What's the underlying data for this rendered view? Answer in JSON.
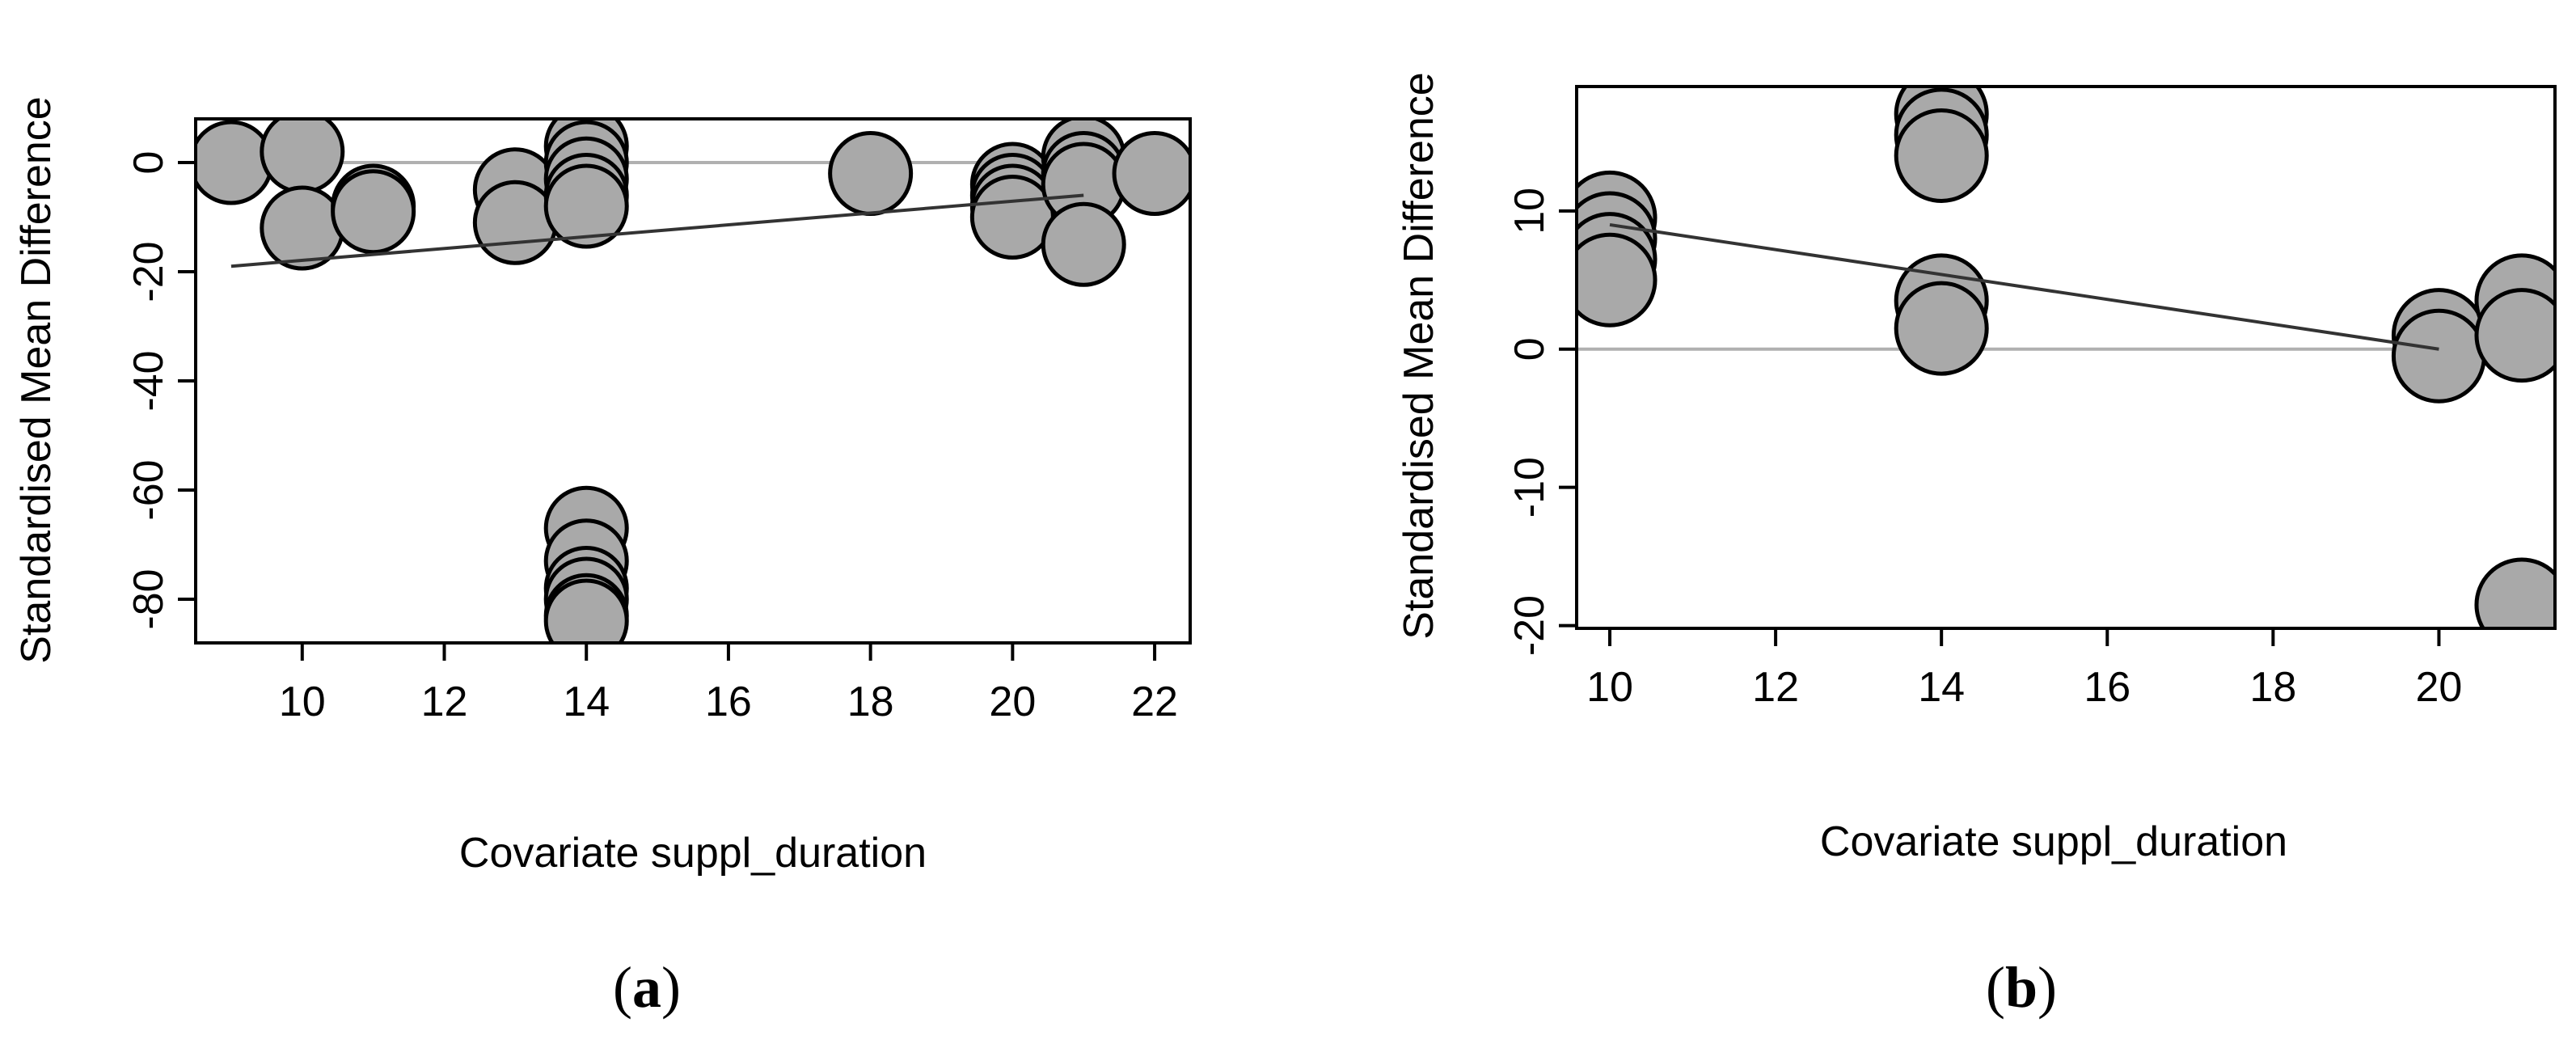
{
  "chart_data": [
    {
      "type": "scatter",
      "panel_label": "a",
      "xlabel": "Covariate suppl_duration",
      "ylabel": "Standardised Mean Difference",
      "xlim": [
        8.5,
        22.5
      ],
      "ylim": [
        -88,
        8
      ],
      "xticks": [
        10,
        12,
        14,
        16,
        18,
        20,
        22
      ],
      "yticks": [
        0,
        -20,
        -40,
        -60,
        -80
      ],
      "reference_line_y": 0,
      "regression_line": {
        "x": [
          9,
          21
        ],
        "y": [
          -19,
          -6
        ]
      },
      "points": [
        {
          "x": 9,
          "y": 0
        },
        {
          "x": 10,
          "y": 2
        },
        {
          "x": 10,
          "y": -12
        },
        {
          "x": 11,
          "y": -8
        },
        {
          "x": 11,
          "y": -9
        },
        {
          "x": 13,
          "y": -5
        },
        {
          "x": 13,
          "y": -11
        },
        {
          "x": 14,
          "y": 3
        },
        {
          "x": 14,
          "y": 0
        },
        {
          "x": 14,
          "y": -3
        },
        {
          "x": 14,
          "y": -6
        },
        {
          "x": 14,
          "y": -8
        },
        {
          "x": 14,
          "y": -67
        },
        {
          "x": 14,
          "y": -73
        },
        {
          "x": 14,
          "y": -78
        },
        {
          "x": 14,
          "y": -80
        },
        {
          "x": 14,
          "y": -83
        },
        {
          "x": 14,
          "y": -84
        },
        {
          "x": 18,
          "y": -2
        },
        {
          "x": 20,
          "y": -4
        },
        {
          "x": 20,
          "y": -6
        },
        {
          "x": 20,
          "y": -8
        },
        {
          "x": 20,
          "y": -10
        },
        {
          "x": 21,
          "y": 1
        },
        {
          "x": 21,
          "y": -2
        },
        {
          "x": 21,
          "y": -4
        },
        {
          "x": 21,
          "y": -15
        },
        {
          "x": 22,
          "y": -2
        }
      ]
    },
    {
      "type": "scatter",
      "panel_label": "b",
      "xlabel": "Covariate suppl_duration",
      "ylabel": "Standardised Mean Difference",
      "xlim": [
        9.6,
        21.4
      ],
      "ylim": [
        -20.2,
        19
      ],
      "xticks": [
        10,
        12,
        14,
        16,
        18,
        20
      ],
      "yticks": [
        10,
        0,
        -10,
        -20
      ],
      "reference_line_y": 0,
      "regression_line": {
        "x": [
          10,
          20
        ],
        "y": [
          9,
          0
        ]
      },
      "points": [
        {
          "x": 10,
          "y": 9.5
        },
        {
          "x": 10,
          "y": 8
        },
        {
          "x": 10,
          "y": 6.5
        },
        {
          "x": 10,
          "y": 5
        },
        {
          "x": 14,
          "y": 17
        },
        {
          "x": 14,
          "y": 15.5
        },
        {
          "x": 14,
          "y": 14
        },
        {
          "x": 14,
          "y": 3.5
        },
        {
          "x": 14,
          "y": 1.5
        },
        {
          "x": 20,
          "y": 1
        },
        {
          "x": 20,
          "y": -0.5
        },
        {
          "x": 21,
          "y": 3.5
        },
        {
          "x": 21,
          "y": 1
        },
        {
          "x": 21,
          "y": -18.5
        }
      ]
    }
  ]
}
